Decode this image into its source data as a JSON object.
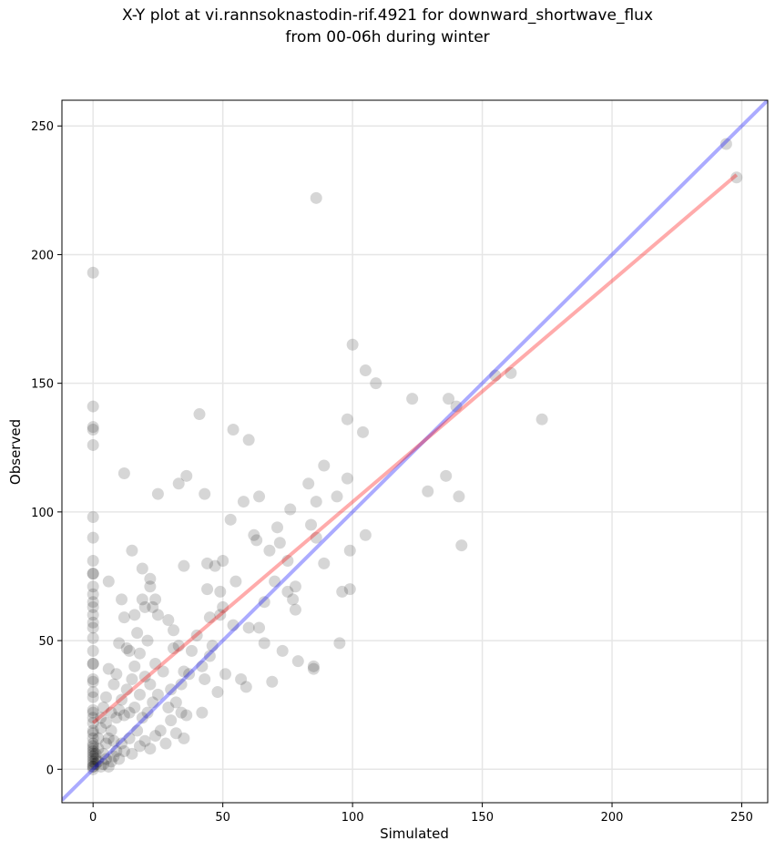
{
  "chart_data": {
    "type": "scatter",
    "title_line1": "X-Y plot at vi.rannsoknastodin-rif.4921 for downward_shortwave_flux",
    "title_line2": "from 00-06h during winter",
    "xlabel": "Simulated",
    "ylabel": "Observed",
    "xlim": [
      -12,
      260
    ],
    "ylim": [
      -13,
      260
    ],
    "xticks": [
      0,
      50,
      100,
      150,
      200,
      250
    ],
    "yticks": [
      0,
      50,
      100,
      150,
      200,
      250
    ],
    "grid": true,
    "colors": {
      "points": "#000000",
      "one_to_one": "#0000ff",
      "fit": "#ff0000"
    },
    "one_to_one_line": {
      "from": [
        -12,
        -12
      ],
      "to": [
        260,
        260
      ]
    },
    "fit_line": {
      "from": [
        0,
        18
      ],
      "to": [
        248,
        231
      ]
    },
    "points": [
      [
        0,
        193
      ],
      [
        0,
        141
      ],
      [
        0,
        133
      ],
      [
        0,
        132
      ],
      [
        0,
        126
      ],
      [
        0,
        98
      ],
      [
        0,
        90
      ],
      [
        0,
        81
      ],
      [
        0,
        76
      ],
      [
        0,
        76
      ],
      [
        0,
        71
      ],
      [
        0,
        68
      ],
      [
        0,
        65
      ],
      [
        0,
        63
      ],
      [
        0,
        60
      ],
      [
        0,
        57
      ],
      [
        0,
        55
      ],
      [
        0,
        51
      ],
      [
        0,
        46
      ],
      [
        0,
        41
      ],
      [
        0,
        41
      ],
      [
        0,
        35
      ],
      [
        0,
        34
      ],
      [
        0,
        30
      ],
      [
        0,
        28
      ],
      [
        0,
        23
      ],
      [
        0,
        22
      ],
      [
        0,
        20
      ],
      [
        0,
        18
      ],
      [
        0,
        15
      ],
      [
        0,
        14
      ],
      [
        0,
        12
      ],
      [
        0,
        10
      ],
      [
        0,
        9
      ],
      [
        0,
        8
      ],
      [
        0,
        7
      ],
      [
        0,
        6
      ],
      [
        0,
        5
      ],
      [
        0,
        4
      ],
      [
        0,
        3
      ],
      [
        0,
        2
      ],
      [
        0,
        1
      ],
      [
        0,
        1
      ],
      [
        0,
        0
      ],
      [
        1,
        2
      ],
      [
        1,
        4
      ],
      [
        1,
        6
      ],
      [
        2,
        3
      ],
      [
        2,
        8
      ],
      [
        2,
        12
      ],
      [
        3,
        1
      ],
      [
        3,
        16
      ],
      [
        3,
        20
      ],
      [
        4,
        2
      ],
      [
        4,
        6
      ],
      [
        4,
        24
      ],
      [
        5,
        4
      ],
      [
        5,
        10
      ],
      [
        5,
        18
      ],
      [
        5,
        28
      ],
      [
        6,
        1
      ],
      [
        6,
        12
      ],
      [
        6,
        39
      ],
      [
        6,
        73
      ],
      [
        7,
        3
      ],
      [
        7,
        15
      ],
      [
        7,
        22
      ],
      [
        8,
        5
      ],
      [
        8,
        11
      ],
      [
        8,
        33
      ],
      [
        9,
        7
      ],
      [
        9,
        20
      ],
      [
        9,
        37
      ],
      [
        10,
        4
      ],
      [
        10,
        23
      ],
      [
        10,
        49
      ],
      [
        11,
        10
      ],
      [
        11,
        27
      ],
      [
        11,
        66
      ],
      [
        12,
        7
      ],
      [
        12,
        21
      ],
      [
        12,
        59
      ],
      [
        12,
        115
      ],
      [
        13,
        31
      ],
      [
        13,
        47
      ],
      [
        14,
        12
      ],
      [
        14,
        22
      ],
      [
        14,
        46
      ],
      [
        15,
        6
      ],
      [
        15,
        35
      ],
      [
        15,
        85
      ],
      [
        16,
        24
      ],
      [
        16,
        40
      ],
      [
        16,
        60
      ],
      [
        17,
        15
      ],
      [
        17,
        53
      ],
      [
        18,
        9
      ],
      [
        18,
        29
      ],
      [
        18,
        45
      ],
      [
        19,
        20
      ],
      [
        19,
        66
      ],
      [
        19,
        78
      ],
      [
        20,
        11
      ],
      [
        20,
        36
      ],
      [
        20,
        63
      ],
      [
        21,
        22
      ],
      [
        21,
        50
      ],
      [
        22,
        8
      ],
      [
        22,
        33
      ],
      [
        22,
        71
      ],
      [
        22,
        74
      ],
      [
        23,
        26
      ],
      [
        23,
        63
      ],
      [
        24,
        13
      ],
      [
        24,
        41
      ],
      [
        24,
        66
      ],
      [
        25,
        29
      ],
      [
        25,
        60
      ],
      [
        25,
        107
      ],
      [
        26,
        15
      ],
      [
        27,
        38
      ],
      [
        28,
        10
      ],
      [
        29,
        24
      ],
      [
        29,
        58
      ],
      [
        30,
        19
      ],
      [
        30,
        31
      ],
      [
        31,
        47
      ],
      [
        31,
        54
      ],
      [
        32,
        14
      ],
      [
        32,
        26
      ],
      [
        33,
        48
      ],
      [
        33,
        111
      ],
      [
        34,
        22
      ],
      [
        34,
        33
      ],
      [
        35,
        12
      ],
      [
        35,
        38
      ],
      [
        35,
        79
      ],
      [
        36,
        21
      ],
      [
        36,
        114
      ],
      [
        37,
        37
      ],
      [
        38,
        46
      ],
      [
        40,
        52
      ],
      [
        41,
        138
      ],
      [
        42,
        22
      ],
      [
        42,
        40
      ],
      [
        43,
        35
      ],
      [
        43,
        107
      ],
      [
        44,
        80
      ],
      [
        44,
        70
      ],
      [
        45,
        44
      ],
      [
        45,
        59
      ],
      [
        46,
        48
      ],
      [
        47,
        79
      ],
      [
        48,
        30
      ],
      [
        49,
        69
      ],
      [
        49,
        60
      ],
      [
        50,
        63
      ],
      [
        50,
        81
      ],
      [
        51,
        37
      ],
      [
        53,
        97
      ],
      [
        54,
        56
      ],
      [
        54,
        132
      ],
      [
        55,
        73
      ],
      [
        57,
        35
      ],
      [
        58,
        104
      ],
      [
        59,
        32
      ],
      [
        60,
        55
      ],
      [
        60,
        128
      ],
      [
        62,
        91
      ],
      [
        63,
        89
      ],
      [
        64,
        106
      ],
      [
        64,
        55
      ],
      [
        66,
        65
      ],
      [
        66,
        49
      ],
      [
        68,
        85
      ],
      [
        69,
        34
      ],
      [
        70,
        73
      ],
      [
        71,
        94
      ],
      [
        72,
        88
      ],
      [
        73,
        46
      ],
      [
        75,
        81
      ],
      [
        75,
        69
      ],
      [
        76,
        101
      ],
      [
        77,
        66
      ],
      [
        78,
        62
      ],
      [
        78,
        71
      ],
      [
        79,
        42
      ],
      [
        83,
        111
      ],
      [
        84,
        95
      ],
      [
        85,
        40
      ],
      [
        85,
        39
      ],
      [
        86,
        90
      ],
      [
        86,
        104
      ],
      [
        86,
        222
      ],
      [
        89,
        118
      ],
      [
        89,
        80
      ],
      [
        94,
        106
      ],
      [
        95,
        49
      ],
      [
        96,
        69
      ],
      [
        98,
        113
      ],
      [
        98,
        136
      ],
      [
        99,
        85
      ],
      [
        99,
        70
      ],
      [
        100,
        165
      ],
      [
        104,
        131
      ],
      [
        105,
        91
      ],
      [
        105,
        155
      ],
      [
        109,
        150
      ],
      [
        123,
        144
      ],
      [
        129,
        108
      ],
      [
        136,
        114
      ],
      [
        137,
        144
      ],
      [
        140,
        141
      ],
      [
        141,
        106
      ],
      [
        142,
        87
      ],
      [
        155,
        153
      ],
      [
        161,
        154
      ],
      [
        173,
        136
      ],
      [
        244,
        243
      ],
      [
        248,
        230
      ]
    ]
  }
}
